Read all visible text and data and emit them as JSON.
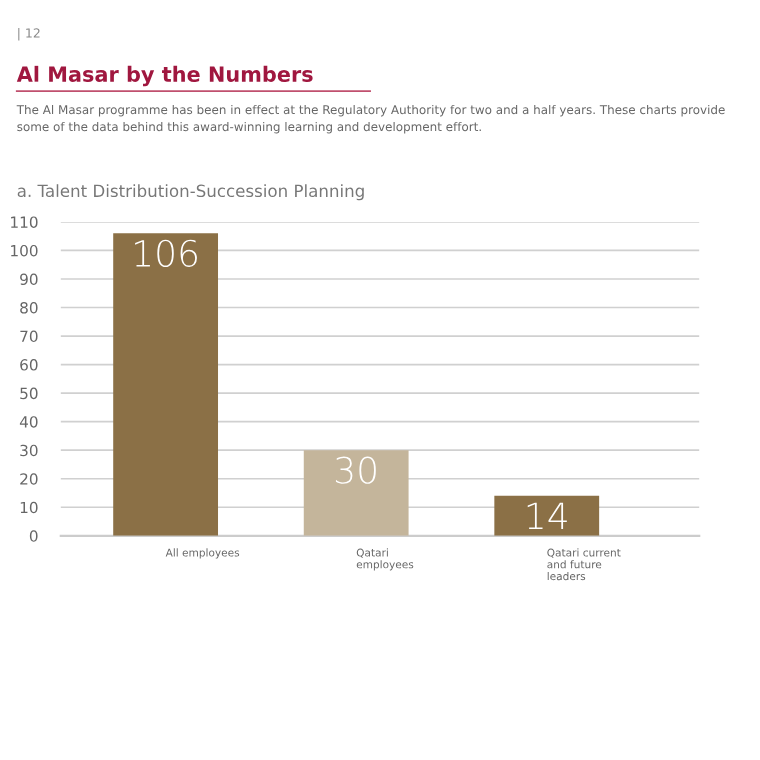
{
  "chart_data": {
    "type": "bar",
    "title": "Al Masar by the Numbers",
    "subtitle": "The Al Masar programme has been in effect at the Regulatory Authority for two and a half years. These charts provide some of the data behind this award-winning learning and development effort.",
    "xlabel": "a. Talent Distribution-Succession Planning",
    "annotations": [
      "| 12"
    ],
    "categories": [
      "All employees",
      "Qatari\nemployees",
      "Qatari current\nand future\nleaders"
    ],
    "values": [
      106,
      30,
      14
    ],
    "colors": [
      "#8b7046",
      "#c4b59b",
      "#8b7046"
    ],
    "data_labels": true,
    "ylim": [
      0,
      110
    ],
    "yticks": [
      0,
      10,
      20,
      30,
      40,
      50,
      60,
      70,
      80,
      90,
      100,
      110
    ],
    "grid": "y"
  }
}
